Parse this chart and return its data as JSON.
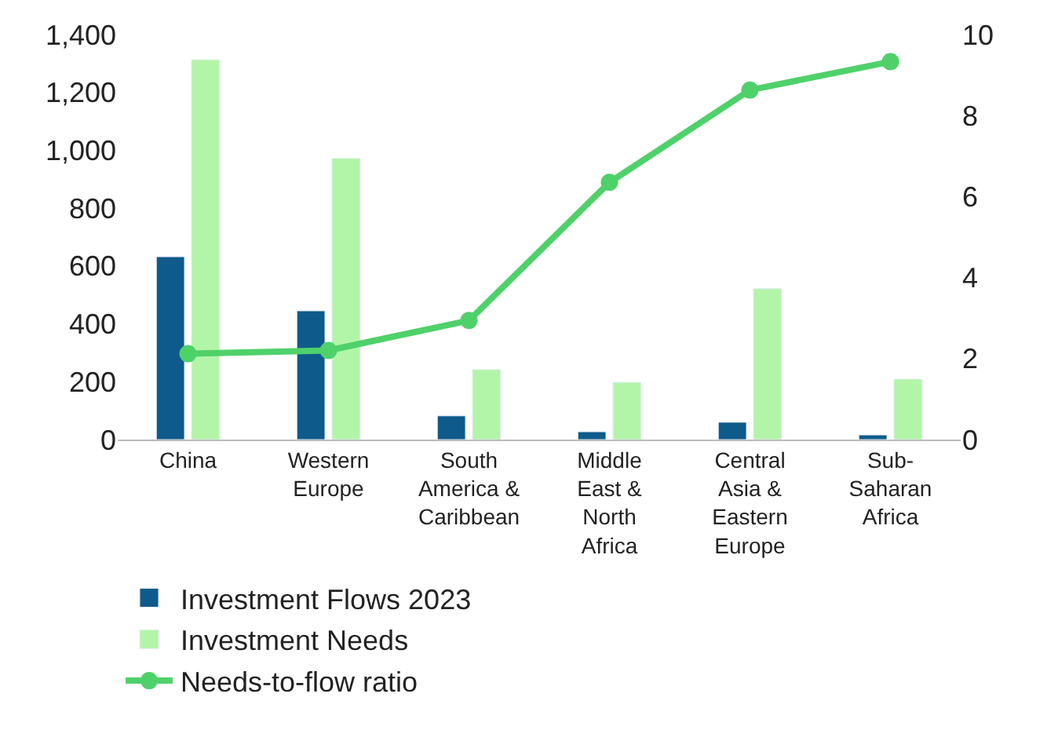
{
  "chart_data": {
    "type": "bar",
    "categories": [
      "China",
      "Western Europe",
      "South America & Caribbean",
      "Middle East & North Africa",
      "Central Asia & Eastern Europe",
      "Sub-Saharan Africa"
    ],
    "series": [
      {
        "name": "Investment Flows 2023",
        "color": "#0e5a8a",
        "values": [
          632,
          445,
          82,
          27,
          60,
          16
        ]
      },
      {
        "name": "Investment Needs",
        "color": "#b3f5a8",
        "values": [
          1313,
          972,
          242,
          198,
          522,
          209
        ]
      },
      {
        "name": "Needs-to-flow ratio",
        "type": "line",
        "axis": "y2",
        "color": "#4fd16a",
        "marker": "circle",
        "values": [
          2.12,
          2.2,
          2.94,
          6.35,
          8.63,
          9.33
        ]
      }
    ],
    "ylim": [
      0,
      1400
    ],
    "yticks": [
      0,
      200,
      400,
      600,
      800,
      {
        "value": 1000,
        "label": "1,000"
      },
      {
        "value": 1200,
        "label": "1,200"
      },
      {
        "value": 1400,
        "label": "1,400"
      }
    ],
    "y2lim": [
      0,
      10
    ],
    "y2ticks": [
      0,
      2,
      4,
      6,
      8,
      10
    ],
    "legend": "bottom"
  }
}
